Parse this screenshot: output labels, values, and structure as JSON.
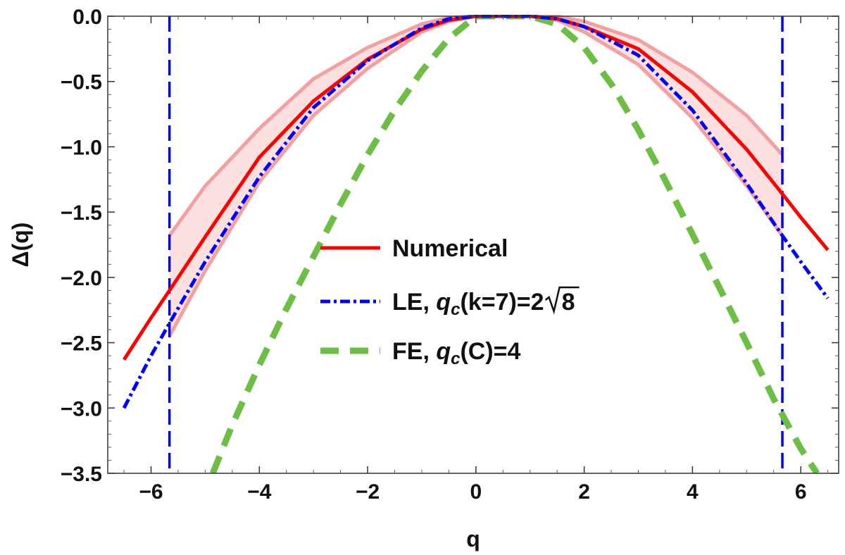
{
  "chart_data": {
    "type": "line",
    "title": "",
    "xlabel": "q",
    "ylabel": "Δ(q)",
    "xlim": [
      -6.8,
      6.7
    ],
    "ylim": [
      -3.5,
      0.0
    ],
    "x_ticks": [
      -6,
      -4,
      -2,
      0,
      2,
      4,
      6
    ],
    "y_ticks": [
      0.0,
      -0.5,
      -1.0,
      -1.5,
      -2.0,
      -2.5,
      -3.0,
      -3.5
    ],
    "x_tick_labels": [
      "−6",
      "−4",
      "−2",
      "0",
      "2",
      "4",
      "6"
    ],
    "y_tick_labels": [
      "0.0",
      "−0.5",
      "−1.0",
      "−1.5",
      "−2.0",
      "−2.5",
      "−3.0",
      "−3.5"
    ],
    "legend_position": "center",
    "grid": false,
    "series": [
      {
        "name": "Numerical",
        "color": "#ff0000",
        "style": "solid",
        "x": [
          -6.5,
          -6,
          -5.66,
          -5,
          -4,
          -3,
          -2,
          -1,
          -0.5,
          0,
          1,
          1.5,
          2,
          3,
          4,
          5,
          5.66,
          6,
          6.5
        ],
        "y": [
          -2.63,
          -2.31,
          -2.1,
          -1.69,
          -1.08,
          -0.65,
          -0.33,
          -0.1,
          -0.03,
          0.0,
          0.0,
          -0.02,
          -0.08,
          -0.25,
          -0.58,
          -1.02,
          -1.36,
          -1.54,
          -1.79
        ]
      },
      {
        "name": "LE, q_c(k=7)=2√8",
        "legend_label_prefix": "LE, ",
        "legend_label_q": "q",
        "legend_label_sub": "c",
        "legend_label_suffix": "(k=7)=2",
        "legend_label_sqrt": "8",
        "color": "#0000ff",
        "style": "dashdot",
        "x": [
          -6.5,
          -6,
          -5.66,
          -5,
          -4,
          -3,
          -2,
          -1,
          -0.5,
          0,
          1,
          1.5,
          2,
          3,
          4,
          5,
          5.66,
          6,
          6.5
        ],
        "y": [
          -3.0,
          -2.6,
          -2.35,
          -1.88,
          -1.23,
          -0.7,
          -0.34,
          -0.09,
          -0.02,
          0.0,
          0.0,
          -0.02,
          -0.08,
          -0.3,
          -0.72,
          -1.28,
          -1.68,
          -1.88,
          -2.16
        ]
      },
      {
        "name": "FE, q_c(C)=4",
        "legend_label_prefix": "FE, ",
        "legend_label_q": "q",
        "legend_label_sub": "c",
        "legend_label_suffix": "(C)=4",
        "color": "#6cbe45",
        "style": "dashed",
        "x": [
          -4.86,
          -4.5,
          -4,
          -3.5,
          -3,
          -2.5,
          -2,
          -1.5,
          -1,
          -0.5,
          0,
          1,
          1.5,
          2,
          2.5,
          3,
          3.5,
          4,
          4.5,
          5,
          5.5,
          6,
          6.3
        ],
        "y": [
          -3.5,
          -3.13,
          -2.67,
          -2.24,
          -1.84,
          -1.44,
          -1.06,
          -0.72,
          -0.42,
          -0.17,
          0.0,
          0.0,
          -0.06,
          -0.24,
          -0.52,
          -0.87,
          -1.26,
          -1.67,
          -2.08,
          -2.5,
          -2.93,
          -3.31,
          -3.5
        ]
      }
    ],
    "uncertainty_band": {
      "color": "#f5a0a0",
      "fill": "#fde0e0",
      "x": [
        -5.66,
        -5,
        -4,
        -3,
        -2,
        -1,
        -0.5,
        0,
        1,
        1.5,
        2,
        3,
        4,
        5,
        5.66
      ],
      "upper": [
        -1.68,
        -1.3,
        -0.86,
        -0.48,
        -0.24,
        -0.06,
        -0.01,
        0.0,
        0.0,
        0.0,
        -0.04,
        -0.18,
        -0.43,
        -0.76,
        -1.06
      ],
      "lower": [
        -2.45,
        -1.95,
        -1.27,
        -0.76,
        -0.4,
        -0.12,
        -0.04,
        0.0,
        0.0,
        -0.03,
        -0.12,
        -0.37,
        -0.78,
        -1.3,
        -1.68
      ]
    },
    "vertical_lines": [
      {
        "x": -5.66,
        "color": "#0000ff",
        "style": "dashed"
      },
      {
        "x": 5.66,
        "color": "#0000ff",
        "style": "dashed"
      }
    ]
  }
}
